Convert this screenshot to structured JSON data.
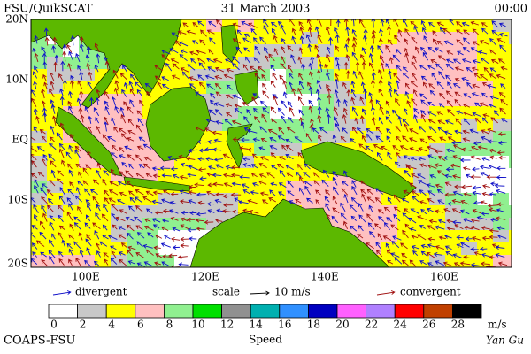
{
  "header": {
    "title": "FSU/QuikSCAT",
    "date": "31 March 2003",
    "time": "00:00"
  },
  "map": {
    "lat_labels": [
      "20N",
      "10N",
      "EQ",
      "10S",
      "20S"
    ],
    "lon_labels": [
      "100E",
      "120E",
      "140E",
      "160E"
    ]
  },
  "legend": {
    "divergent": "divergent",
    "scale": "scale",
    "scale_value": "10 m/s",
    "convergent": "convergent",
    "divergent_color": "#1010c8",
    "convergent_color": "#a01010"
  },
  "colorbar": {
    "ticks": [
      0,
      2,
      4,
      6,
      8,
      10,
      12,
      14,
      16,
      18,
      20,
      22,
      24,
      26,
      28
    ],
    "unit": "m/s",
    "title": "Speed",
    "colors": [
      "#ffffff",
      "#c8c8c8",
      "#ffff00",
      "#ffc0c0",
      "#90f090",
      "#00e000",
      "#909090",
      "#00b0b0",
      "#3090ff",
      "#0000c0",
      "#ff60ff",
      "#b080ff",
      "#ff0000",
      "#c04000",
      "#000000"
    ]
  },
  "footer": {
    "left": "COAPS-FSU",
    "right": "Yan Gu"
  }
}
